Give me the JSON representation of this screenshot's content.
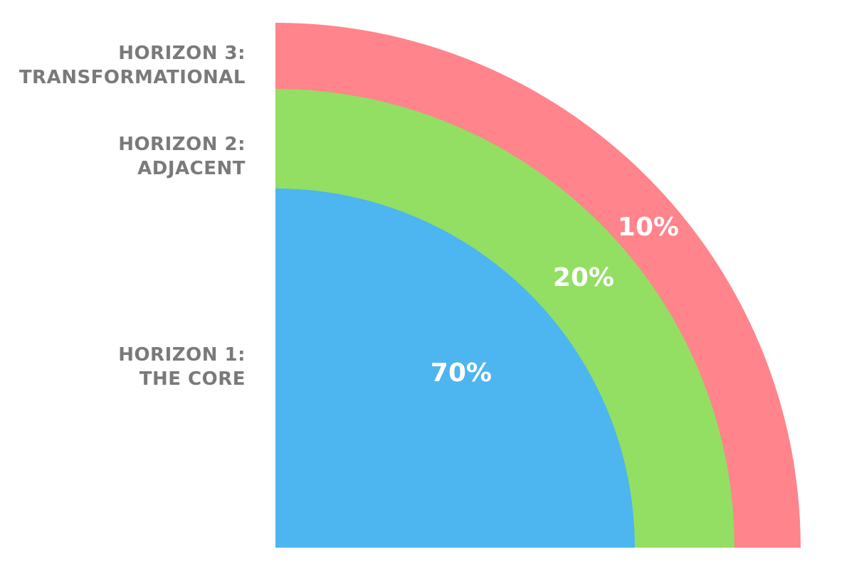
{
  "horizons": [
    {
      "id": "h1",
      "line1": "HORIZON 1:",
      "line2": "THE CORE",
      "percent_label": "70%",
      "share": 70,
      "color": "#4db5f0"
    },
    {
      "id": "h2",
      "line1": "HORIZON 2:",
      "line2": "ADJACENT",
      "percent_label": "20%",
      "share": 20,
      "color": "#92df63"
    },
    {
      "id": "h3",
      "line1": "HORIZON 3:",
      "line2": "TRANSFORMATIONAL",
      "percent_label": "10%",
      "share": 10,
      "color": "#ff848b"
    }
  ],
  "label_color": "#7a7a7a"
}
